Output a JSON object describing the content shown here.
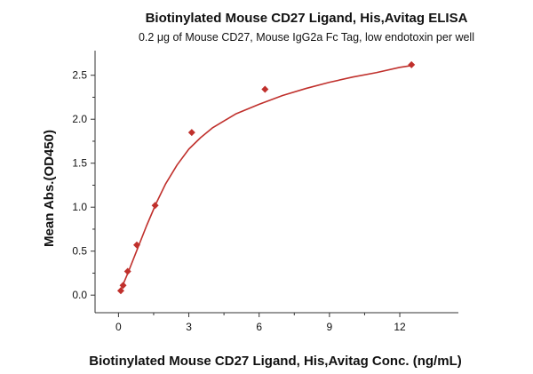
{
  "chart_data": {
    "type": "scatter",
    "title": "Biotinylated Mouse CD27 Ligand, His,Avitag ELISA",
    "subtitle": "0.2 μg of Mouse CD27, Mouse IgG2a Fc Tag, low endotoxin per well",
    "xlabel": "Biotinylated Mouse CD27 Ligand, His,Avitag Conc. (ng/mL)",
    "ylabel": "Mean Abs.(OD450)",
    "xlim": [
      -1,
      14.5
    ],
    "ylim": [
      -0.2,
      2.78
    ],
    "x_ticks": [
      0,
      3,
      6,
      9,
      12
    ],
    "y_ticks": [
      0.0,
      0.5,
      1.0,
      1.5,
      2.0,
      2.5
    ],
    "grid": false,
    "colors": {
      "series": "#c0302c",
      "axis": "#333333"
    },
    "series": [
      {
        "marker": "diamond",
        "points": [
          {
            "x": 0.098,
            "y": 0.05
          },
          {
            "x": 0.195,
            "y": 0.11
          },
          {
            "x": 0.391,
            "y": 0.27
          },
          {
            "x": 0.781,
            "y": 0.57
          },
          {
            "x": 1.563,
            "y": 1.02
          },
          {
            "x": 3.125,
            "y": 1.85
          },
          {
            "x": 6.25,
            "y": 2.34
          },
          {
            "x": 12.5,
            "y": 2.62
          }
        ],
        "fit_curve": [
          {
            "x": 0.098,
            "y": 0.06
          },
          {
            "x": 0.4,
            "y": 0.25
          },
          {
            "x": 0.8,
            "y": 0.52
          },
          {
            "x": 1.2,
            "y": 0.79
          },
          {
            "x": 1.6,
            "y": 1.04
          },
          {
            "x": 2.0,
            "y": 1.26
          },
          {
            "x": 2.5,
            "y": 1.48
          },
          {
            "x": 3.0,
            "y": 1.66
          },
          {
            "x": 3.5,
            "y": 1.79
          },
          {
            "x": 4.0,
            "y": 1.9
          },
          {
            "x": 5.0,
            "y": 2.06
          },
          {
            "x": 6.0,
            "y": 2.17
          },
          {
            "x": 7.0,
            "y": 2.27
          },
          {
            "x": 8.0,
            "y": 2.35
          },
          {
            "x": 9.0,
            "y": 2.42
          },
          {
            "x": 10.0,
            "y": 2.48
          },
          {
            "x": 11.0,
            "y": 2.53
          },
          {
            "x": 12.0,
            "y": 2.59
          },
          {
            "x": 12.5,
            "y": 2.61
          }
        ]
      }
    ]
  }
}
